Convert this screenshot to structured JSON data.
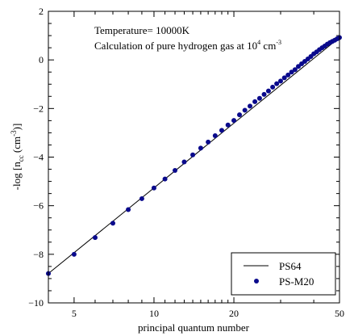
{
  "chart_data": {
    "type": "line",
    "title": "",
    "xlabel": "principal quantum number",
    "ylabel_main": "-log [n",
    "ylabel_sub": "cc",
    "ylabel_unit": " (cm",
    "ylabel_sup": "-3",
    "ylabel_end": ")]",
    "xscale": "log",
    "xlim": [
      4,
      50
    ],
    "ylim": [
      -10,
      2
    ],
    "xticks": [
      5,
      10,
      20,
      50
    ],
    "xtick_labels": [
      "5",
      "10",
      "20",
      "50"
    ],
    "yticks": [
      -10,
      -8,
      -6,
      -4,
      -2,
      0,
      2
    ],
    "ytick_labels": [
      "−10",
      "−8",
      "−6",
      "−4",
      "−2",
      "0",
      "2"
    ],
    "annotations": {
      "line1": "Temperature= 10000K",
      "line2_pre": "Calculation of pure hydrogen gas at 10",
      "line2_sup": "4",
      "line2_mid": " cm",
      "line2_sup2": "-3"
    },
    "legend": {
      "position": "bottom-right",
      "entries": [
        {
          "label": "PS64",
          "style": "line"
        },
        {
          "label": "PS-M20",
          "style": "marker"
        }
      ]
    },
    "series": [
      {
        "name": "PS64",
        "style": "line",
        "color": "#000000",
        "x": [
          4,
          50
        ],
        "y": [
          -8.79,
          0.92
        ]
      },
      {
        "name": "PS-M20",
        "style": "marker",
        "color": "#0a0a8c",
        "x": [
          4,
          5,
          6,
          7,
          8,
          9,
          10,
          11,
          12,
          13,
          14,
          15,
          16,
          17,
          18,
          19,
          20,
          21,
          22,
          23,
          24,
          25,
          26,
          27,
          28,
          29,
          30,
          31,
          32,
          33,
          34,
          35,
          36,
          37,
          38,
          39,
          40,
          41,
          42,
          43,
          44,
          45,
          46,
          47,
          48,
          49,
          50
        ],
        "y": [
          -8.79,
          -8.0,
          -7.31,
          -6.72,
          -6.16,
          -5.71,
          -5.27,
          -4.9,
          -4.55,
          -4.2,
          -3.91,
          -3.63,
          -3.38,
          -3.12,
          -2.9,
          -2.68,
          -2.49,
          -2.26,
          -2.07,
          -1.9,
          -1.72,
          -1.58,
          -1.42,
          -1.28,
          -1.12,
          -0.98,
          -0.87,
          -0.74,
          -0.62,
          -0.5,
          -0.4,
          -0.27,
          -0.16,
          -0.06,
          0.04,
          0.14,
          0.25,
          0.33,
          0.42,
          0.5,
          0.57,
          0.65,
          0.71,
          0.76,
          0.81,
          0.87,
          0.92
        ]
      }
    ]
  }
}
